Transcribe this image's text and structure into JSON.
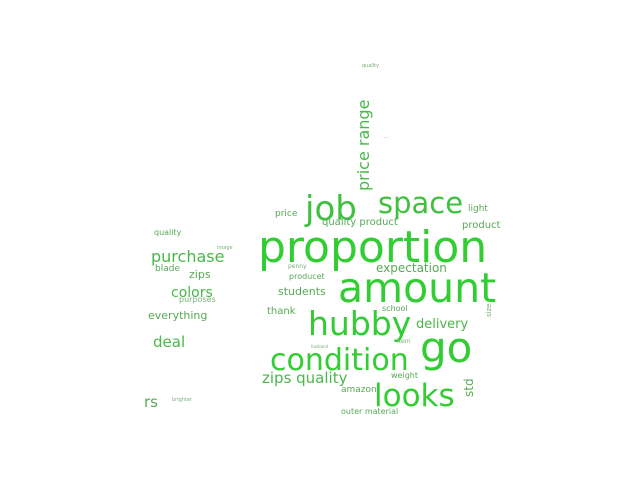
{
  "cloud": {
    "colors": {
      "bright": "#32cd32",
      "mid": "#3fb83f",
      "muted": "#57a957",
      "faint": "#7cae7c"
    },
    "words": {
      "proportion": "proportion",
      "amount": "amount",
      "go": "go",
      "hubby": "hubby",
      "condition": "condition",
      "looks": "looks",
      "job": "job",
      "space": "space",
      "price_range": "price range",
      "purchase": "purchase",
      "colors": "colors",
      "deal": "deal",
      "zips_quality": "zips quality",
      "delivery": "delivery",
      "expectation": "expectation",
      "rs": "rs",
      "quality_product": "quality product",
      "product": "product",
      "light": "light",
      "price": "price",
      "students": "students",
      "thank": "thank",
      "everything": "everything",
      "blade": "blade",
      "zips": "zips",
      "purposes": "purposes",
      "producet": "producet",
      "std": "std",
      "amazon": "amazon",
      "weight": "weight",
      "outer_material": "outer material",
      "school": "school",
      "quality_left": "quality",
      "quality_top": "quality",
      "penny": "penny",
      "image": "image",
      "item": "item",
      "husband": "husband",
      "brighter": "brighter",
      "size": "size",
      "dots": "..."
    }
  }
}
